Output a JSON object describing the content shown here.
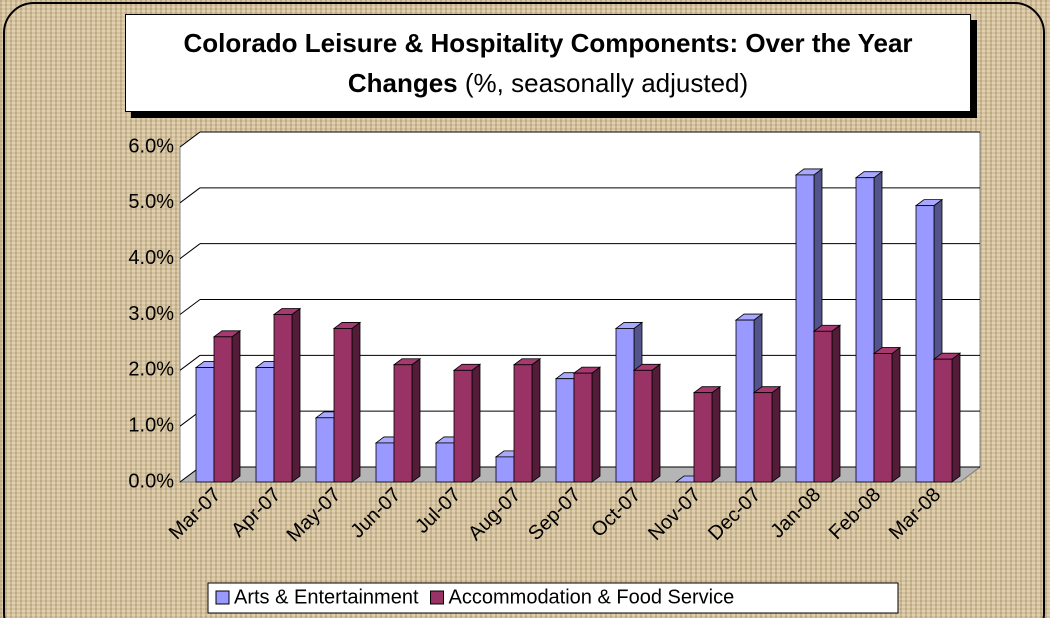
{
  "chart_data": {
    "type": "bar3d",
    "title": "Colorado Leisure & Hospitality Components: Over the Year  Changes",
    "subtitle": "(%, seasonally adjusted)",
    "categories": [
      "Mar-07",
      "Apr-07",
      "May-07",
      "Jun-07",
      "Jul-07",
      "Aug-07",
      "Sep-07",
      "Oct-07",
      "Nov-07",
      "Dec-07",
      "Jan-08",
      "Feb-08",
      "Mar-08"
    ],
    "series": [
      {
        "name": "Arts & Entertainment",
        "color": "#9999ff",
        "values": [
          2.05,
          2.05,
          1.15,
          0.7,
          0.7,
          0.45,
          1.85,
          2.75,
          0.0,
          2.9,
          5.5,
          5.45,
          4.95
        ]
      },
      {
        "name": "Accommodation & Food Service",
        "color": "#993366",
        "values": [
          2.6,
          3.0,
          2.75,
          2.1,
          2.0,
          2.1,
          1.95,
          2.0,
          1.6,
          1.6,
          2.7,
          2.3,
          2.2
        ]
      }
    ],
    "ylim": [
      0,
      6
    ],
    "yticks": [
      {
        "value": 0,
        "label": "0.0%"
      },
      {
        "value": 1,
        "label": "1.0%"
      },
      {
        "value": 2,
        "label": "2.0%"
      },
      {
        "value": 3,
        "label": "3.0%"
      },
      {
        "value": 4,
        "label": "4.0%"
      },
      {
        "value": 5,
        "label": "5.0%"
      },
      {
        "value": 6,
        "label": "6.0%"
      }
    ],
    "grid": true,
    "legend": "bottom"
  }
}
